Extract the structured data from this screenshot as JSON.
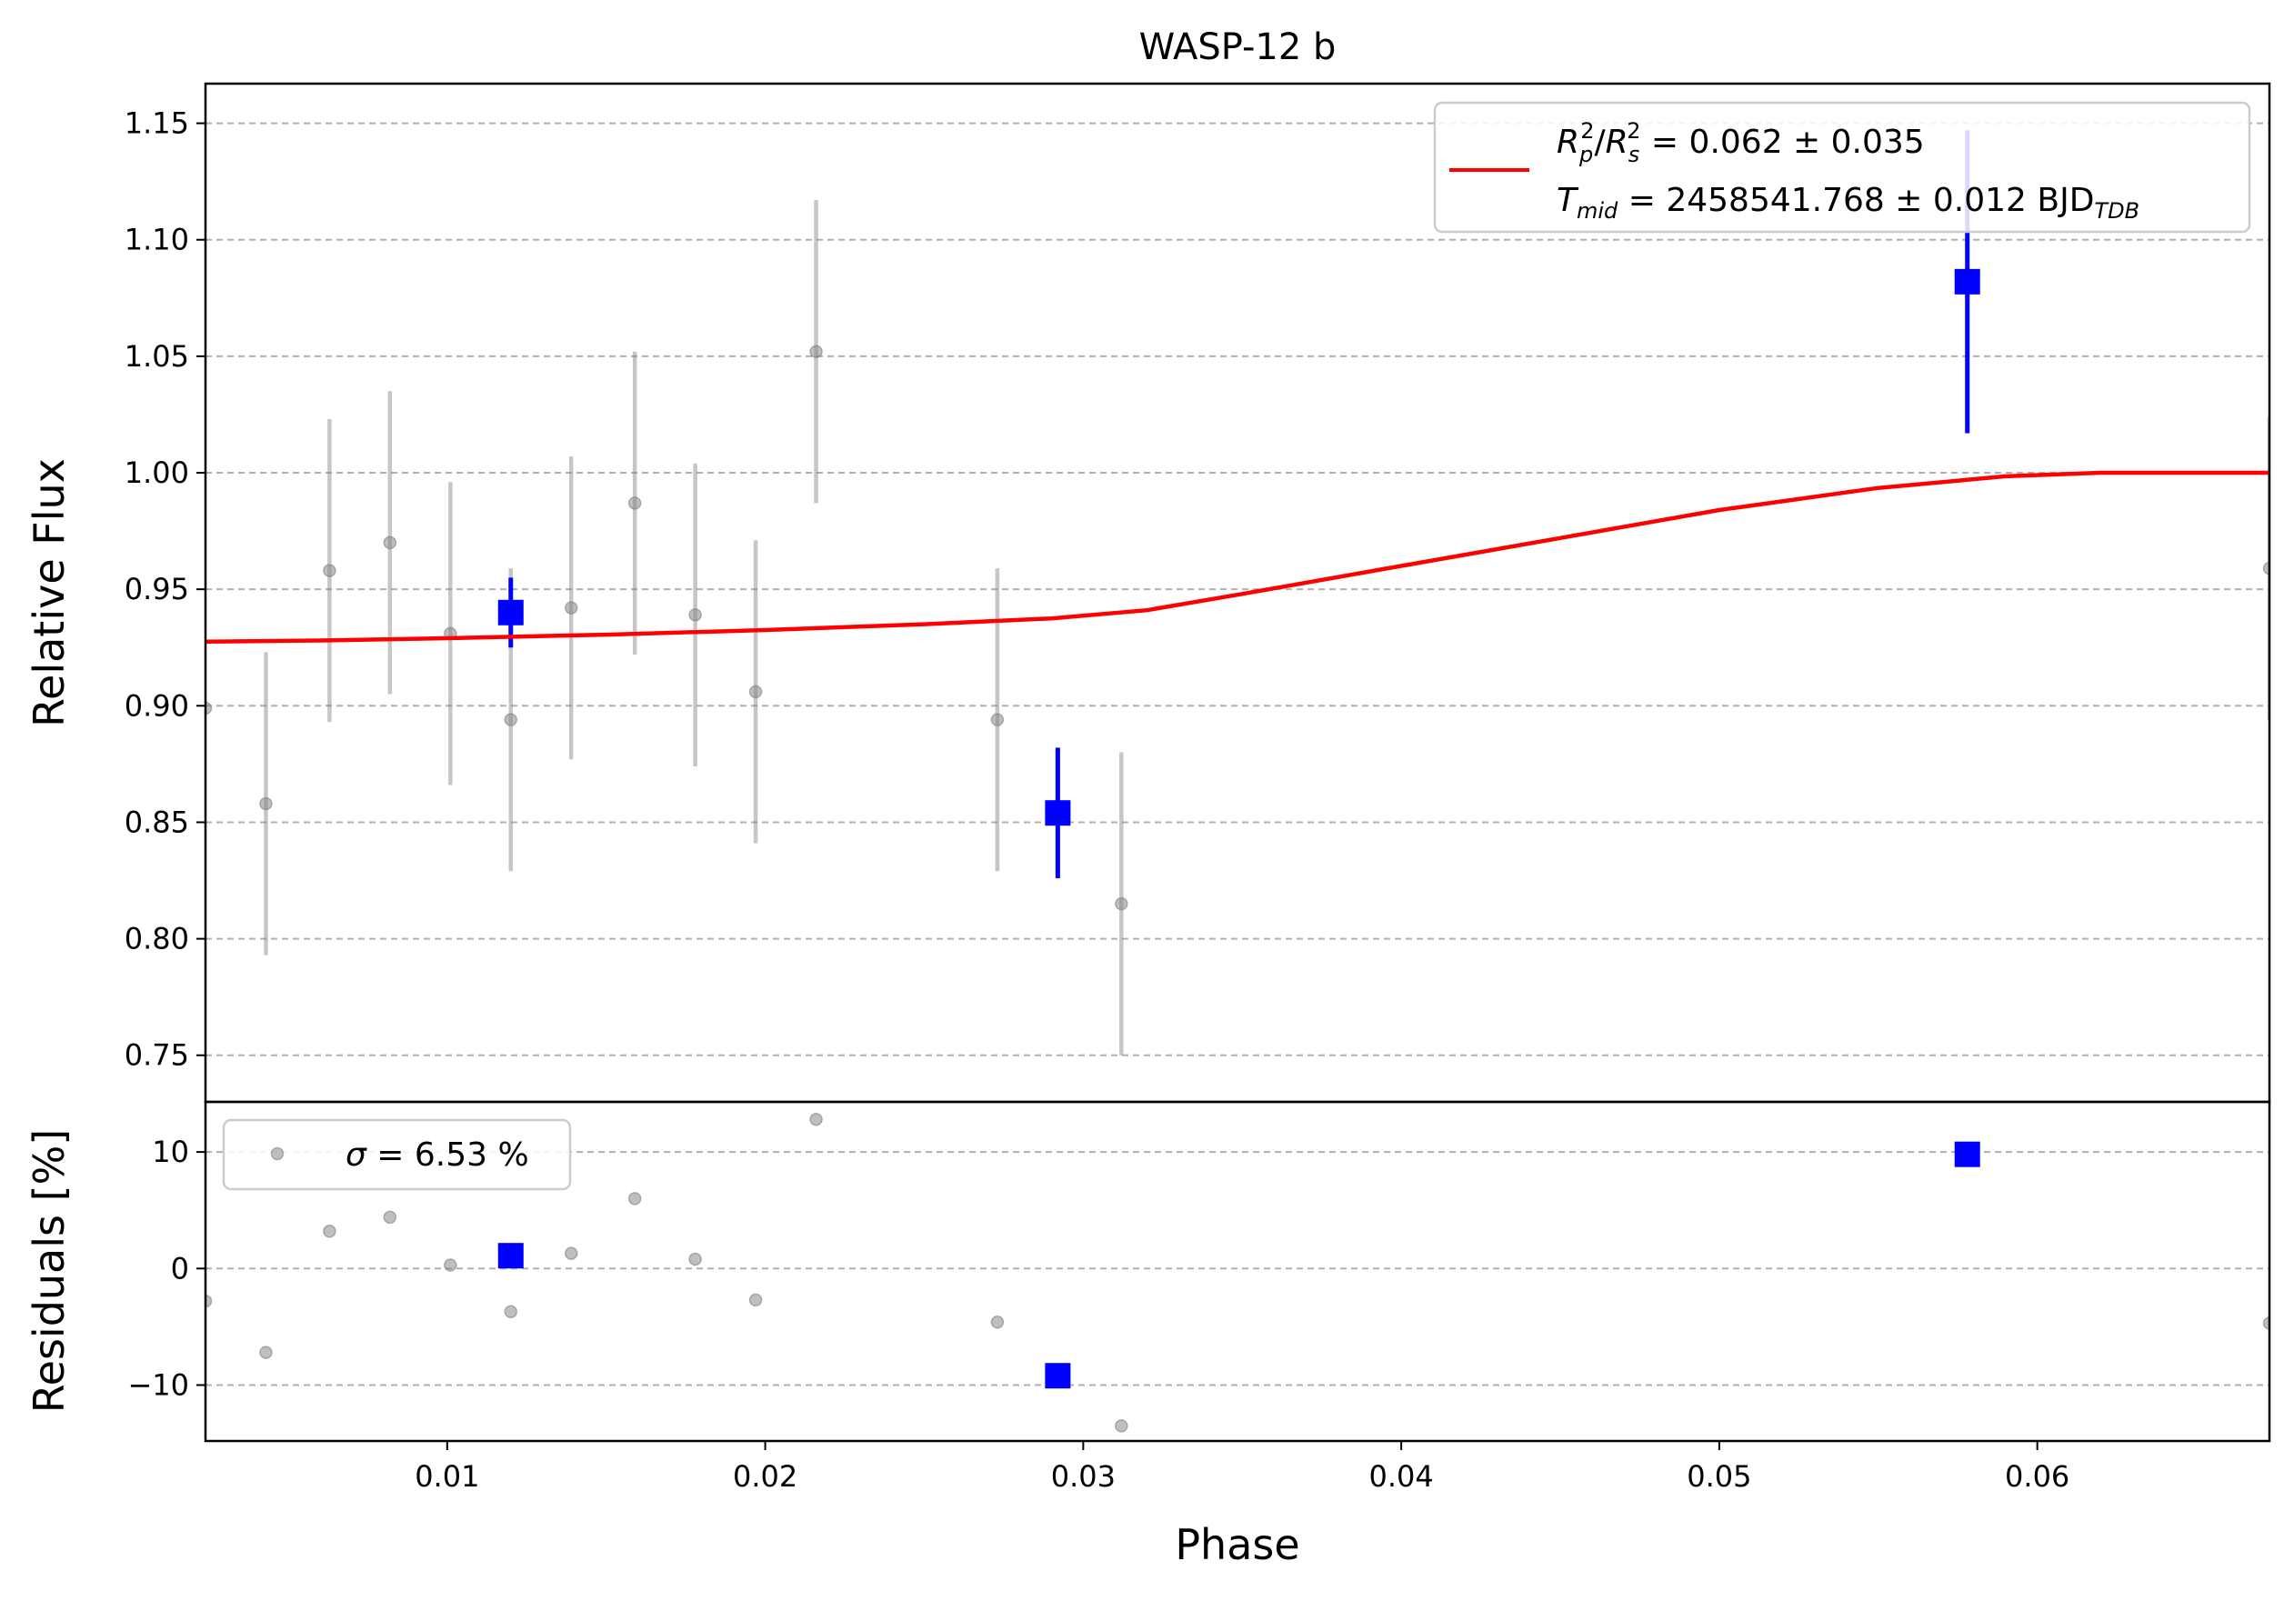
{
  "chart_data": [
    {
      "type": "scatter",
      "title": "WASP-12 b",
      "ylabel": "Relative Flux",
      "xlim": [
        0.0024,
        0.0673
      ],
      "ylim": [
        0.73,
        1.167
      ],
      "grid": "y-dashed",
      "yticks": [
        "0.75",
        "0.80",
        "0.85",
        "0.90",
        "0.95",
        "1.00",
        "1.05",
        "1.10",
        "1.15"
      ],
      "ytick_values": [
        0.75,
        0.8,
        0.85,
        0.9,
        0.95,
        1.0,
        1.05,
        1.1,
        1.15
      ],
      "legend_position": "top-right",
      "legend": {
        "line1_main": "R",
        "line1_value": " = 0.062 ± 0.035",
        "line2_main": "T",
        "line2_sub": "mid",
        "line2_value": " = 2458541.768 ± 0.012 BJD",
        "line2_unit_sub": "TDB",
        "sub_p": "p",
        "sub_s": "s",
        "sup_2": "2",
        "slash": "/"
      },
      "series": [
        {
          "kind": "raw",
          "color": "#808080",
          "points": [
            {
              "x": 0.0024,
              "y": 0.899,
              "err": 0.0
            },
            {
              "x": 0.0043,
              "y": 0.858,
              "err": 0.065
            },
            {
              "x": 0.0063,
              "y": 0.958,
              "err": 0.065
            },
            {
              "x": 0.0082,
              "y": 0.97,
              "err": 0.065
            },
            {
              "x": 0.0101,
              "y": 0.931,
              "err": 0.065
            },
            {
              "x": 0.012,
              "y": 0.894,
              "err": 0.065
            },
            {
              "x": 0.0139,
              "y": 0.942,
              "err": 0.065
            },
            {
              "x": 0.0159,
              "y": 0.987,
              "err": 0.065
            },
            {
              "x": 0.0178,
              "y": 0.939,
              "err": 0.065
            },
            {
              "x": 0.0197,
              "y": 0.906,
              "err": 0.065
            },
            {
              "x": 0.0216,
              "y": 1.052,
              "err": 0.065
            },
            {
              "x": 0.0273,
              "y": 0.894,
              "err": 0.065
            },
            {
              "x": 0.0312,
              "y": 0.815,
              "err": 0.065
            },
            {
              "x": 0.0673,
              "y": 0.959,
              "err": 0.065
            }
          ]
        },
        {
          "kind": "binned",
          "color": "#0000ff",
          "points": [
            {
              "x": 0.012,
              "y": 0.94,
              "err": 0.015
            },
            {
              "x": 0.0292,
              "y": 0.854,
              "err": 0.028
            },
            {
              "x": 0.0578,
              "y": 1.082,
              "err": 0.065
            }
          ]
        },
        {
          "kind": "model",
          "color": "#ff0000",
          "points": [
            {
              "x": 0.0024,
              "y": 0.9275
            },
            {
              "x": 0.006,
              "y": 0.928
            },
            {
              "x": 0.01,
              "y": 0.929
            },
            {
              "x": 0.015,
              "y": 0.9305
            },
            {
              "x": 0.02,
              "y": 0.9325
            },
            {
              "x": 0.025,
              "y": 0.935
            },
            {
              "x": 0.029,
              "y": 0.9375
            },
            {
              "x": 0.032,
              "y": 0.941
            },
            {
              "x": 0.035,
              "y": 0.948
            },
            {
              "x": 0.04,
              "y": 0.96
            },
            {
              "x": 0.045,
              "y": 0.972
            },
            {
              "x": 0.05,
              "y": 0.984
            },
            {
              "x": 0.055,
              "y": 0.9935
            },
            {
              "x": 0.059,
              "y": 0.9985
            },
            {
              "x": 0.062,
              "y": 1.0
            },
            {
              "x": 0.0673,
              "y": 1.0
            }
          ]
        }
      ]
    },
    {
      "type": "scatter",
      "xlabel": "Phase",
      "ylabel": "Residuals [%]",
      "xlim": [
        0.0024,
        0.0673
      ],
      "ylim": [
        -14.8,
        14.3
      ],
      "grid": "y-dashed",
      "yticks": [
        "−10",
        "0",
        "10"
      ],
      "ytick_values": [
        -10,
        0,
        10
      ],
      "xticks": [
        "0.01",
        "0.02",
        "0.03",
        "0.04",
        "0.05",
        "0.06"
      ],
      "xtick_values": [
        0.01,
        0.02,
        0.03,
        0.04,
        0.05,
        0.06
      ],
      "legend_position": "top-left",
      "legend": {
        "sigma_symbol": "σ",
        "sigma_value": " = 6.53 %"
      },
      "series": [
        {
          "kind": "raw",
          "color": "#808080",
          "points": [
            {
              "x": 0.0024,
              "y": -2.8
            },
            {
              "x": 0.0043,
              "y": -7.2
            },
            {
              "x": 0.0063,
              "y": 3.2
            },
            {
              "x": 0.0082,
              "y": 4.4
            },
            {
              "x": 0.0101,
              "y": 0.3
            },
            {
              "x": 0.012,
              "y": -3.7
            },
            {
              "x": 0.0139,
              "y": 1.3
            },
            {
              "x": 0.0159,
              "y": 6.0
            },
            {
              "x": 0.0178,
              "y": 0.8
            },
            {
              "x": 0.0197,
              "y": -2.7
            },
            {
              "x": 0.0216,
              "y": 12.8
            },
            {
              "x": 0.0273,
              "y": -4.6
            },
            {
              "x": 0.0312,
              "y": -13.5
            },
            {
              "x": 0.0673,
              "y": -4.7
            }
          ]
        },
        {
          "kind": "binned",
          "color": "#0000ff",
          "points": [
            {
              "x": 0.012,
              "y": 1.1
            },
            {
              "x": 0.0292,
              "y": -9.2
            },
            {
              "x": 0.0578,
              "y": 9.8
            }
          ]
        }
      ]
    }
  ]
}
